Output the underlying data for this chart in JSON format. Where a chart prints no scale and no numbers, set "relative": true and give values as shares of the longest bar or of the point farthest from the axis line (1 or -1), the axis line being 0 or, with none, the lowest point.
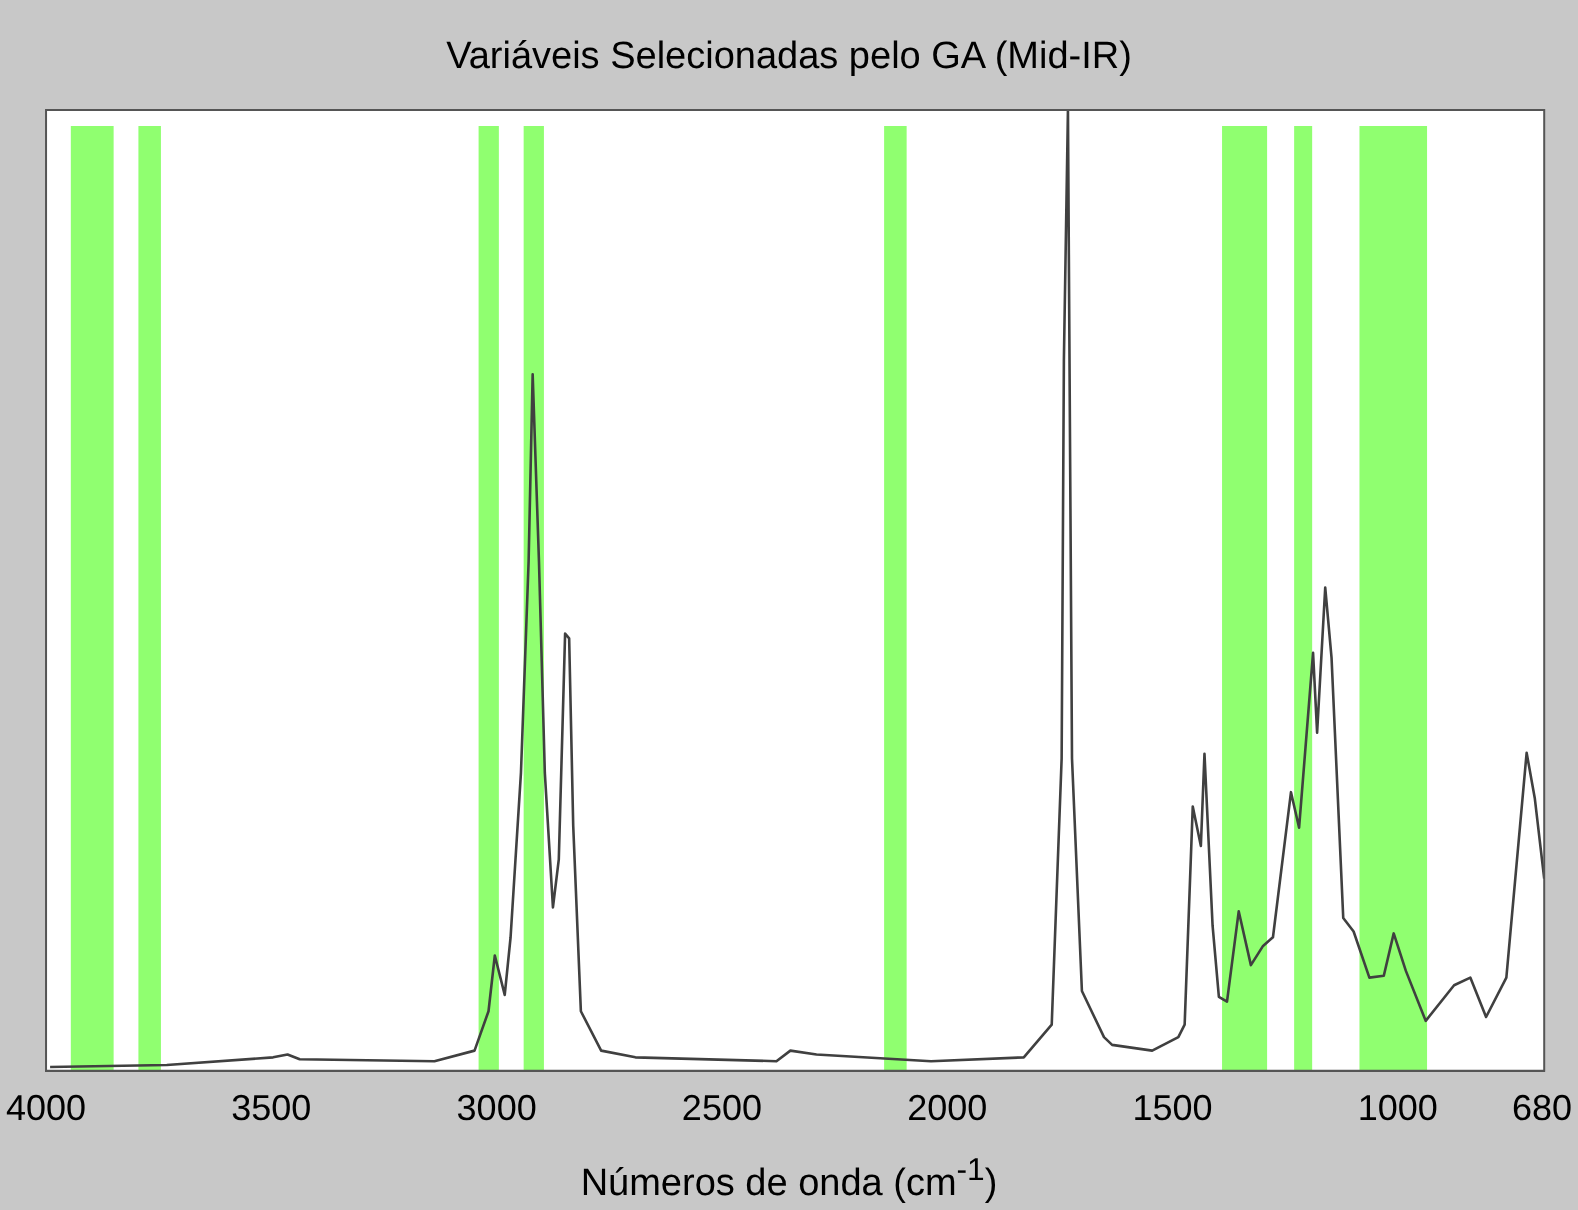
{
  "chart_data": {
    "type": "line",
    "title": "Variáveis Selecionadas pelo GA (Mid-IR)",
    "xlabel": "Números de onda (cm$^{-1}$)",
    "relative": true,
    "grid": false,
    "legend": false,
    "marker": "none",
    "line_style": "solid",
    "xlim": [
      4000,
      675
    ],
    "xticks": [
      4000,
      3500,
      3000,
      2500,
      2000,
      1500,
      1000,
      680
    ],
    "x": [
      3991,
      3732,
      3496,
      3464,
      3437,
      3138,
      3049,
      3018,
      3004,
      2982,
      2969,
      2946,
      2929,
      2920,
      2906,
      2893,
      2875,
      2862,
      2848,
      2839,
      2830,
      2813,
      2768,
      2692,
      2379,
      2348,
      2290,
      2036,
      1830,
      1768,
      1746,
      1741,
      1732,
      1723,
      1701,
      1652,
      1634,
      1545,
      1487,
      1473,
      1455,
      1437,
      1429,
      1411,
      1397,
      1379,
      1353,
      1326,
      1299,
      1277,
      1237,
      1219,
      1188,
      1179,
      1161,
      1147,
      1121,
      1098,
      1063,
      1031,
      1009,
      982,
      938,
      875,
      839,
      804,
      759,
      714,
      696,
      675
    ],
    "series": [
      {
        "color": "#404040",
        "values": [
          0.004,
          0.006,
          0.014,
          0.017,
          0.012,
          0.01,
          0.021,
          0.062,
          0.12,
          0.079,
          0.139,
          0.31,
          0.53,
          0.725,
          0.53,
          0.31,
          0.17,
          0.22,
          0.455,
          0.45,
          0.255,
          0.062,
          0.021,
          0.014,
          0.01,
          0.021,
          0.017,
          0.01,
          0.014,
          0.048,
          0.325,
          0.74,
          1.0,
          0.325,
          0.083,
          0.035,
          0.027,
          0.021,
          0.035,
          0.048,
          0.275,
          0.234,
          0.33,
          0.151,
          0.077,
          0.072,
          0.166,
          0.11,
          0.13,
          0.139,
          0.29,
          0.253,
          0.435,
          0.352,
          0.503,
          0.43,
          0.159,
          0.145,
          0.097,
          0.099,
          0.143,
          0.104,
          0.052,
          0.089,
          0.097,
          0.056,
          0.097,
          0.331,
          0.284,
          0.2
        ]
      }
    ],
    "bands": [
      {
        "axis": "x",
        "from": 3945,
        "to": 3850,
        "color": "#90ff70"
      },
      {
        "axis": "x",
        "from": 3795,
        "to": 3745,
        "color": "#90ff70"
      },
      {
        "axis": "x",
        "from": 3040,
        "to": 2995,
        "color": "#90ff70"
      },
      {
        "axis": "x",
        "from": 2940,
        "to": 2895,
        "color": "#90ff70"
      },
      {
        "axis": "x",
        "from": 2140,
        "to": 2090,
        "color": "#90ff70"
      },
      {
        "axis": "x",
        "from": 1390,
        "to": 1290,
        "color": "#90ff70"
      },
      {
        "axis": "x",
        "from": 1230,
        "to": 1190,
        "color": "#90ff70"
      },
      {
        "axis": "x",
        "from": 1085,
        "to": 935,
        "color": "#90ff70"
      }
    ]
  }
}
